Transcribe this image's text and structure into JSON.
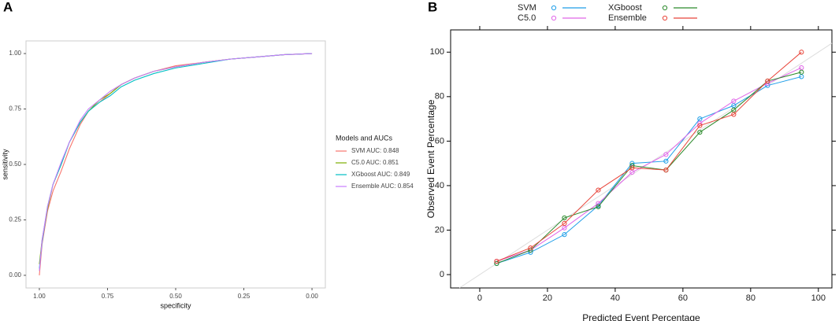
{
  "chart_data": [
    {
      "type": "line",
      "panel_label": "A",
      "xlabel": "specificity",
      "ylabel": "sensitivity",
      "legend_title": "Models and AUCs",
      "legend": "right",
      "markers": false,
      "reverse_x": true,
      "xlim": [
        1.049,
        -0.049
      ],
      "ylim": [
        -0.057,
        1.057
      ],
      "xticks": [
        {
          "value": 1,
          "label": "1.00"
        },
        {
          "value": 0.75,
          "label": "0.75"
        },
        {
          "value": 0.5,
          "label": "0.50"
        },
        {
          "value": 0.25,
          "label": "0.25"
        },
        {
          "value": 0,
          "label": "0.00"
        }
      ],
      "yticks": [
        {
          "value": 0,
          "label": "0.00"
        },
        {
          "value": 0.25,
          "label": "0.25"
        },
        {
          "value": 0.5,
          "label": "0.50"
        },
        {
          "value": 0.75,
          "label": "0.75"
        },
        {
          "value": 1,
          "label": "1.00"
        }
      ],
      "x": [
        1,
        0.99,
        0.97,
        0.95,
        0.92,
        0.89,
        0.85,
        0.82,
        0.78,
        0.74,
        0.7,
        0.65,
        0.58,
        0.5,
        0.4,
        0.3,
        0.2,
        0.1,
        0
      ],
      "series": [
        {
          "name": "SVM AUC: 0.848",
          "color": "#f8766d",
          "values": [
            0,
            0.14,
            0.29,
            0.38,
            0.47,
            0.57,
            0.68,
            0.74,
            0.78,
            0.82,
            0.86,
            0.89,
            0.92,
            0.945,
            0.96,
            0.975,
            0.985,
            0.995,
            1
          ]
        },
        {
          "name": "C5.0 AUC: 0.851",
          "color": "#7cae00",
          "values": [
            0.05,
            0.16,
            0.3,
            0.41,
            0.5,
            0.6,
            0.69,
            0.74,
            0.79,
            0.82,
            0.86,
            0.89,
            0.92,
            0.94,
            0.96,
            0.975,
            0.985,
            0.995,
            1
          ]
        },
        {
          "name": "XGboost AUC: 0.849",
          "color": "#00bfc4",
          "values": [
            0.03,
            0.15,
            0.31,
            0.41,
            0.5,
            0.6,
            0.69,
            0.74,
            0.78,
            0.81,
            0.85,
            0.88,
            0.91,
            0.935,
            0.955,
            0.975,
            0.985,
            0.995,
            1
          ]
        },
        {
          "name": "Ensemble AUC: 0.854",
          "color": "#c77cff",
          "values": [
            0.02,
            0.16,
            0.31,
            0.41,
            0.51,
            0.6,
            0.7,
            0.75,
            0.79,
            0.83,
            0.86,
            0.89,
            0.92,
            0.94,
            0.96,
            0.975,
            0.985,
            0.995,
            1
          ]
        }
      ]
    },
    {
      "type": "line",
      "panel_label": "B",
      "xlabel": "Predicted Event Percentage",
      "ylabel": "Observed Event Percentage",
      "legend": "top",
      "markers": true,
      "reverse_x": false,
      "xlim": [
        -8.6,
        104
      ],
      "ylim": [
        -6,
        110
      ],
      "xticks": [
        0,
        20,
        40,
        60,
        80,
        100
      ],
      "yticks": [
        0,
        20,
        40,
        60,
        80,
        100
      ],
      "x": [
        5,
        15,
        25,
        35,
        45,
        55,
        65,
        75,
        85,
        95
      ],
      "series": [
        {
          "name": "SVM",
          "color": "#1f9ee8",
          "values": [
            5,
            10,
            18,
            31,
            50,
            51,
            70,
            76,
            85,
            89
          ]
        },
        {
          "name": "C5.0",
          "color": "#e066e8",
          "values": [
            6,
            11,
            21,
            32,
            46,
            54,
            68,
            78,
            86,
            93
          ]
        },
        {
          "name": "XGboost",
          "color": "#2b8a2b",
          "values": [
            5,
            11,
            25.5,
            30.5,
            49,
            47,
            64,
            74,
            87,
            91
          ]
        },
        {
          "name": "Ensemble",
          "color": "#e8453a",
          "values": [
            6,
            12,
            23,
            38,
            48,
            47,
            67,
            72,
            87,
            100
          ]
        }
      ]
    }
  ]
}
